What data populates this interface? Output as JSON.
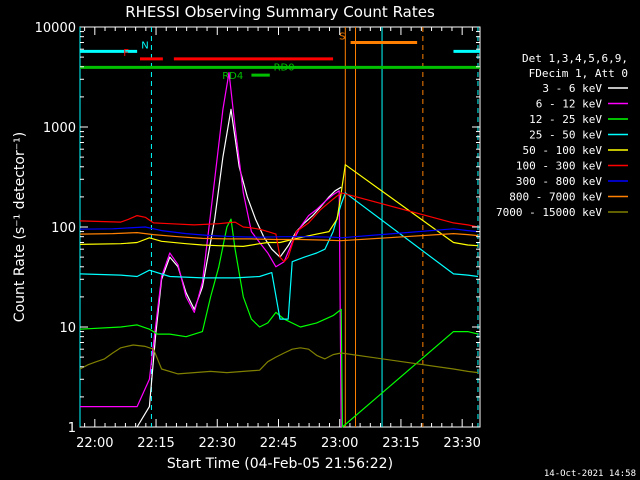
{
  "chart_data": {
    "type": "line",
    "title": "RHESSI Observing Summary Count Rates",
    "xlabel": "Start Time (04-Feb-05 21:56:22)",
    "ylabel": "Count Rate (s⁻¹ detector⁻¹)",
    "yscale": "log",
    "ylim": [
      1,
      10000
    ],
    "xlim_minutes": [
      0,
      98
    ],
    "x_tick_labels": [
      "22:00",
      "22:15",
      "22:30",
      "22:45",
      "23:00",
      "23:15",
      "23:30"
    ],
    "x_tick_minutes": [
      3.63,
      18.63,
      33.63,
      48.63,
      63.63,
      78.63,
      93.63
    ],
    "y_tick_labels": [
      "1",
      "10",
      "100",
      "1000",
      "10000"
    ],
    "y_tick_values": [
      1,
      10,
      100,
      1000,
      10000
    ],
    "legend_header": [
      "Det 1,3,4,5,6,9,",
      "FDecim 1, Att 0"
    ],
    "legend_placement": "right",
    "series": [
      {
        "name": "3 - 6 keV",
        "color": "#ffffff",
        "points": [
          [
            14,
            1
          ],
          [
            17,
            1.6
          ],
          [
            18.5,
            8
          ],
          [
            20,
            30
          ],
          [
            22,
            50
          ],
          [
            24,
            40
          ],
          [
            26,
            22
          ],
          [
            28,
            15
          ],
          [
            30,
            25
          ],
          [
            33,
            120
          ],
          [
            35,
            500
          ],
          [
            37,
            1500
          ],
          [
            39,
            400
          ],
          [
            41,
            200
          ],
          [
            43,
            120
          ],
          [
            45,
            80
          ],
          [
            47,
            60
          ],
          [
            49,
            50
          ],
          [
            51,
            65
          ],
          [
            53,
            90
          ],
          [
            55,
            110
          ],
          [
            57,
            130
          ],
          [
            59,
            160
          ],
          [
            61,
            200
          ],
          [
            62.5,
            230
          ],
          [
            64,
            250
          ]
        ]
      },
      {
        "name": "6 - 12 keV",
        "color": "#ff00ff",
        "points": [
          [
            0,
            1.6
          ],
          [
            14,
            1.6
          ],
          [
            17,
            3
          ],
          [
            18.5,
            10
          ],
          [
            20,
            32
          ],
          [
            22,
            55
          ],
          [
            24,
            42
          ],
          [
            26,
            20
          ],
          [
            28,
            14
          ],
          [
            30,
            28
          ],
          [
            33,
            300
          ],
          [
            35,
            1500
          ],
          [
            36.5,
            3500
          ],
          [
            38,
            1000
          ],
          [
            40,
            220
          ],
          [
            42,
            90
          ],
          [
            44,
            70
          ],
          [
            46,
            55
          ],
          [
            48,
            40
          ],
          [
            50,
            45
          ],
          [
            52,
            70
          ],
          [
            54,
            100
          ],
          [
            56,
            130
          ],
          [
            58,
            150
          ],
          [
            60,
            180
          ],
          [
            62,
            210
          ],
          [
            63.5,
            230
          ],
          [
            64,
            1
          ]
        ]
      },
      {
        "name": "12 - 25 keV",
        "color": "#00ff00",
        "points": [
          [
            0,
            9.5
          ],
          [
            10,
            10
          ],
          [
            14,
            10.5
          ],
          [
            17,
            9.5
          ],
          [
            19,
            8.5
          ],
          [
            22,
            8.5
          ],
          [
            26,
            8
          ],
          [
            30,
            9
          ],
          [
            32,
            20
          ],
          [
            34,
            40
          ],
          [
            36,
            100
          ],
          [
            37,
            120
          ],
          [
            38,
            60
          ],
          [
            40,
            20
          ],
          [
            42,
            12
          ],
          [
            44,
            10
          ],
          [
            46,
            11
          ],
          [
            48,
            14
          ],
          [
            50,
            12
          ],
          [
            54,
            10
          ],
          [
            58,
            11
          ],
          [
            62,
            13
          ],
          [
            64,
            15
          ],
          [
            64.3,
            1
          ],
          [
            91.5,
            9
          ],
          [
            95,
            9
          ],
          [
            97.5,
            8.5
          ]
        ]
      },
      {
        "name": "25 - 50 keV",
        "color": "#00ffff",
        "points": [
          [
            0,
            34
          ],
          [
            10,
            33
          ],
          [
            14,
            32
          ],
          [
            17,
            37
          ],
          [
            22,
            32
          ],
          [
            30,
            31
          ],
          [
            38,
            31
          ],
          [
            44,
            32
          ],
          [
            47,
            35
          ],
          [
            49,
            12
          ],
          [
            51,
            12
          ],
          [
            52,
            45
          ],
          [
            55,
            50
          ],
          [
            58,
            55
          ],
          [
            60,
            60
          ],
          [
            62,
            90
          ],
          [
            64,
            170
          ],
          [
            65,
            220
          ],
          [
            91.5,
            34
          ],
          [
            95,
            33
          ],
          [
            97.5,
            32
          ]
        ]
      },
      {
        "name": "50 - 100 keV",
        "color": "#ffff00",
        "points": [
          [
            0,
            67
          ],
          [
            10,
            68
          ],
          [
            14,
            70
          ],
          [
            17,
            78
          ],
          [
            20,
            72
          ],
          [
            26,
            68
          ],
          [
            30,
            66
          ],
          [
            34,
            65
          ],
          [
            40,
            64
          ],
          [
            44,
            68
          ],
          [
            46,
            70
          ],
          [
            49,
            70
          ],
          [
            52,
            75
          ],
          [
            55,
            80
          ],
          [
            58,
            85
          ],
          [
            61,
            90
          ],
          [
            63,
            120
          ],
          [
            64,
            220
          ],
          [
            65,
            420
          ],
          [
            91.5,
            70
          ],
          [
            95,
            66
          ],
          [
            97.5,
            65
          ]
        ]
      },
      {
        "name": "100 - 300 keV",
        "color": "#ff0000",
        "points": [
          [
            0,
            115
          ],
          [
            10,
            112
          ],
          [
            12,
            120
          ],
          [
            14,
            130
          ],
          [
            16,
            125
          ],
          [
            18,
            110
          ],
          [
            22,
            108
          ],
          [
            28,
            105
          ],
          [
            34,
            108
          ],
          [
            36,
            110
          ],
          [
            38,
            112
          ],
          [
            40,
            100
          ],
          [
            42,
            98
          ],
          [
            44,
            95
          ],
          [
            46,
            90
          ],
          [
            48,
            85
          ],
          [
            49,
            50
          ],
          [
            50,
            45
          ],
          [
            51,
            50
          ],
          [
            53,
            90
          ],
          [
            56,
            110
          ],
          [
            59,
            150
          ],
          [
            62,
            190
          ],
          [
            64,
            220
          ],
          [
            91.5,
            110
          ],
          [
            95,
            105
          ],
          [
            97.5,
            100
          ]
        ]
      },
      {
        "name": "300 - 800 keV",
        "color": "#0000ff",
        "points": [
          [
            0,
            95
          ],
          [
            8,
            96
          ],
          [
            12,
            98
          ],
          [
            16,
            100
          ],
          [
            20,
            92
          ],
          [
            26,
            86
          ],
          [
            32,
            82
          ],
          [
            38,
            80
          ],
          [
            44,
            79
          ],
          [
            50,
            80
          ],
          [
            56,
            80
          ],
          [
            62,
            79
          ],
          [
            64,
            78
          ],
          [
            91.5,
            96
          ],
          [
            95,
            92
          ],
          [
            97.5,
            90
          ]
        ]
      },
      {
        "name": "800 - 7000 keV",
        "color": "#ff8000",
        "points": [
          [
            0,
            85
          ],
          [
            8,
            86
          ],
          [
            14,
            88
          ],
          [
            18,
            84
          ],
          [
            24,
            80
          ],
          [
            30,
            77
          ],
          [
            36,
            76
          ],
          [
            42,
            76
          ],
          [
            48,
            75
          ],
          [
            54,
            75
          ],
          [
            60,
            74
          ],
          [
            64,
            73
          ],
          [
            91.5,
            86
          ],
          [
            95,
            84
          ],
          [
            97.5,
            82
          ]
        ]
      },
      {
        "name": "7000 - 15000 keV",
        "color": "#808000",
        "points": [
          [
            0,
            3.8
          ],
          [
            2,
            4.2
          ],
          [
            4,
            4.5
          ],
          [
            6,
            4.8
          ],
          [
            8,
            5.5
          ],
          [
            10,
            6.2
          ],
          [
            13,
            6.6
          ],
          [
            16,
            6.4
          ],
          [
            18,
            6
          ],
          [
            20,
            3.8
          ],
          [
            24,
            3.4
          ],
          [
            28,
            3.5
          ],
          [
            32,
            3.6
          ],
          [
            36,
            3.5
          ],
          [
            40,
            3.6
          ],
          [
            44,
            3.7
          ],
          [
            46,
            4.5
          ],
          [
            48,
            5
          ],
          [
            50,
            5.5
          ],
          [
            52,
            6
          ],
          [
            54,
            6.2
          ],
          [
            56,
            6
          ],
          [
            58,
            5.2
          ],
          [
            60,
            4.8
          ],
          [
            62,
            5.3
          ],
          [
            64,
            5.5
          ],
          [
            91.5,
            3.8
          ],
          [
            95,
            3.6
          ],
          [
            97.5,
            3.5
          ]
        ]
      }
    ],
    "flags": [
      {
        "label": "N",
        "color": "#00ffff",
        "segments": [
          [
            0,
            14
          ],
          [
            91.5,
            98
          ]
        ],
        "y": 5700
      },
      {
        "label": "F",
        "color": "#ff0000",
        "segments": [
          [
            14.7,
            20.3
          ],
          [
            23,
            62
          ]
        ],
        "y": 4800
      },
      {
        "label": "S",
        "color": "#ff8000",
        "segments": [
          [
            66.3,
            82.6
          ]
        ],
        "y": 7000
      },
      {
        "label": "RD0",
        "color": "#00c000",
        "segments": [
          [
            0,
            98
          ]
        ],
        "y": 3950
      },
      {
        "label": "RD4",
        "color": "#00c000",
        "segments": [
          [
            42,
            46.5
          ]
        ],
        "y": 3300
      }
    ],
    "vertical_markers": [
      {
        "minute": 0,
        "color": "#00ffff",
        "style": "solid"
      },
      {
        "minute": 17.5,
        "color": "#00ffff",
        "style": "dashed"
      },
      {
        "minute": 65,
        "color": "#ff8000",
        "style": "solid"
      },
      {
        "minute": 67.5,
        "color": "#ff8000",
        "style": "solid"
      },
      {
        "minute": 74,
        "color": "#00ffff",
        "style": "solid"
      },
      {
        "minute": 84,
        "color": "#ff8000",
        "style": "dashed"
      },
      {
        "minute": 97.5,
        "color": "#00ffff",
        "style": "dashed"
      }
    ],
    "grid": false
  },
  "footer": {
    "timestamp": "14-Oct-2021 14:58"
  }
}
